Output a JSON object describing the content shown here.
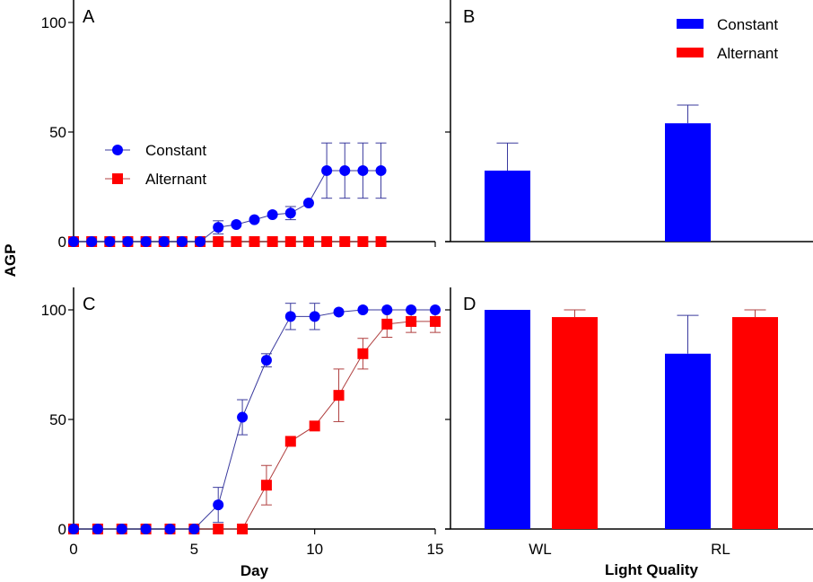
{
  "figure": {
    "shared_ylabel": "AGP",
    "colors": {
      "constant": "#0000ff",
      "alternant": "#ff0000",
      "constant_line": "#3a3a9e",
      "alternant_line": "#b04040"
    }
  },
  "chart_data": [
    {
      "panel": "A",
      "type": "line",
      "xlabel": "",
      "ylabel": "AGP",
      "xlim": [
        0,
        20
      ],
      "ylim": [
        0,
        110
      ],
      "xticks": [
        0,
        5,
        10,
        15,
        20
      ],
      "yticks": [
        0,
        50,
        100
      ],
      "ytick_labels": [
        "0",
        "50",
        "100"
      ],
      "legend": {
        "position": "middle-left",
        "entries": [
          "Constant",
          "Alternant"
        ]
      },
      "series": [
        {
          "name": "Constant",
          "marker": "circle",
          "x": [
            0,
            1,
            2,
            3,
            4,
            5,
            6,
            7,
            8,
            9,
            10,
            11,
            12,
            13,
            14,
            15,
            16,
            17
          ],
          "y": [
            0,
            0,
            0,
            0,
            0,
            0,
            0,
            0,
            6.5,
            7.8,
            10,
            12.3,
            13,
            17.6,
            32.4,
            32.4,
            32.4,
            32.4
          ],
          "err": [
            0,
            0,
            0,
            0,
            0,
            0,
            0,
            0,
            3,
            0,
            0,
            0,
            3,
            0,
            12.6,
            12.6,
            12.6,
            12.6
          ]
        },
        {
          "name": "Alternant",
          "marker": "square",
          "x": [
            0,
            1,
            2,
            3,
            4,
            5,
            6,
            7,
            8,
            9,
            10,
            11,
            12,
            13,
            14,
            15,
            16,
            17
          ],
          "y": [
            0,
            0,
            0,
            0,
            0,
            0,
            0,
            0,
            0,
            0,
            0,
            0,
            0,
            0,
            0,
            0,
            0,
            0
          ],
          "err": [
            0,
            0,
            0,
            0,
            0,
            0,
            0,
            0,
            0,
            0,
            0,
            0,
            0,
            0,
            0,
            0,
            0,
            0
          ]
        }
      ]
    },
    {
      "panel": "B",
      "type": "bar",
      "categories": [
        "WL",
        "RL"
      ],
      "ylim": [
        0,
        110
      ],
      "yticks": [
        0,
        50,
        100
      ],
      "legend": {
        "position": "top-right",
        "entries": [
          "Constant",
          "Alternant"
        ]
      },
      "series": [
        {
          "name": "Constant",
          "values": [
            32.4,
            54
          ],
          "err": [
            12.6,
            8.3
          ]
        },
        {
          "name": "Alternant",
          "values": [
            0,
            0
          ],
          "err": [
            0,
            0
          ]
        }
      ]
    },
    {
      "panel": "C",
      "type": "line",
      "xlabel": "Day",
      "ylabel": "AGP",
      "xlim": [
        0,
        15
      ],
      "ylim": [
        0,
        110
      ],
      "xticks": [
        0,
        5,
        10,
        15
      ],
      "xtick_labels": [
        "0",
        "5",
        "10",
        "15"
      ],
      "yticks": [
        0,
        50,
        100
      ],
      "ytick_labels": [
        "0",
        "50",
        "100"
      ],
      "series": [
        {
          "name": "Constant",
          "marker": "circle",
          "x": [
            0,
            1,
            2,
            3,
            4,
            5,
            6,
            7,
            8,
            9,
            10,
            11,
            12,
            13,
            14,
            15
          ],
          "y": [
            0,
            0,
            0,
            0,
            0,
            0,
            11,
            51,
            77,
            97,
            97,
            99,
            100,
            100,
            100,
            100
          ],
          "err": [
            0,
            0,
            0,
            0,
            0,
            0,
            8,
            8,
            3,
            6,
            6,
            0,
            0,
            0,
            0,
            0
          ]
        },
        {
          "name": "Alternant",
          "marker": "square",
          "x": [
            0,
            1,
            2,
            3,
            4,
            5,
            6,
            7,
            8,
            9,
            10,
            11,
            12,
            13,
            14,
            15
          ],
          "y": [
            0,
            0,
            0,
            0,
            0,
            0,
            0,
            0,
            20,
            40,
            47,
            61,
            80,
            93.5,
            94.7,
            94.7
          ],
          "err": [
            0,
            0,
            0,
            0,
            0,
            0,
            0,
            0,
            9,
            0,
            0,
            12,
            7,
            6,
            5,
            5
          ]
        }
      ]
    },
    {
      "panel": "D",
      "type": "bar",
      "xlabel": "Light Quality",
      "categories": [
        "WL",
        "RL"
      ],
      "ylim": [
        0,
        110
      ],
      "yticks": [
        0,
        50,
        100
      ],
      "series": [
        {
          "name": "Constant",
          "values": [
            100,
            80
          ],
          "err": [
            0,
            17.5
          ]
        },
        {
          "name": "Alternant",
          "values": [
            96.7,
            96.7
          ],
          "err": [
            3.3,
            3.3
          ]
        }
      ]
    }
  ]
}
